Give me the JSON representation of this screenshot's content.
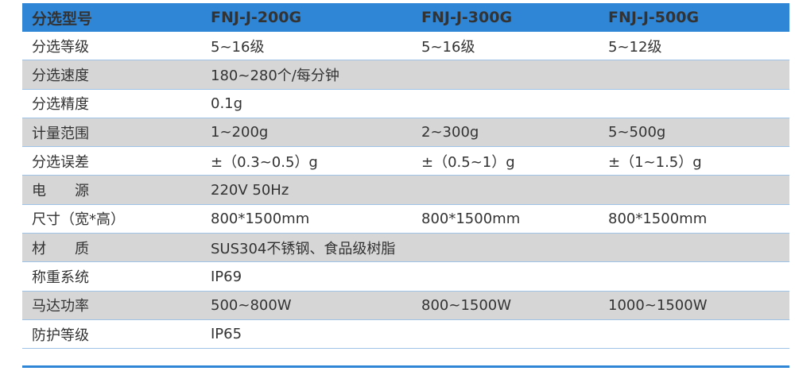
{
  "header": {
    "label": "分选型号",
    "models": [
      "FNJ-J-200G",
      "FNJ-J-300G",
      "FNJ-J-500G"
    ]
  },
  "rows": [
    {
      "label": "分选等级",
      "values": [
        "5~16级",
        "5~16级",
        "5~12级"
      ]
    },
    {
      "label": "分选速度",
      "values": [
        "180~280个/每分钟",
        "",
        ""
      ]
    },
    {
      "label": "分选精度",
      "values": [
        "0.1g",
        "",
        ""
      ]
    },
    {
      "label": "计量范围",
      "values": [
        "1~200g",
        "2~300g",
        "5~500g"
      ]
    },
    {
      "label": "分选误差",
      "values": [
        "±（0.3~0.5）g",
        "±（0.5~1）g",
        "±（1~1.5）g"
      ]
    },
    {
      "label": "电　　源",
      "values": [
        "220V  50Hz",
        "",
        ""
      ]
    },
    {
      "label": "尺寸（宽*高）",
      "values": [
        "800*1500mm",
        "800*1500mm",
        "800*1500mm"
      ]
    },
    {
      "label": "材　　质",
      "values": [
        "SUS304不锈钢、食品级树脂",
        "",
        ""
      ]
    },
    {
      "label": "称重系统",
      "values": [
        "IP69",
        "",
        ""
      ]
    },
    {
      "label": "马达功率",
      "values": [
        "500~800W",
        "800~1500W",
        "1000~1500W"
      ]
    },
    {
      "label": "防护等级",
      "values": [
        "IP65",
        "",
        ""
      ]
    }
  ]
}
